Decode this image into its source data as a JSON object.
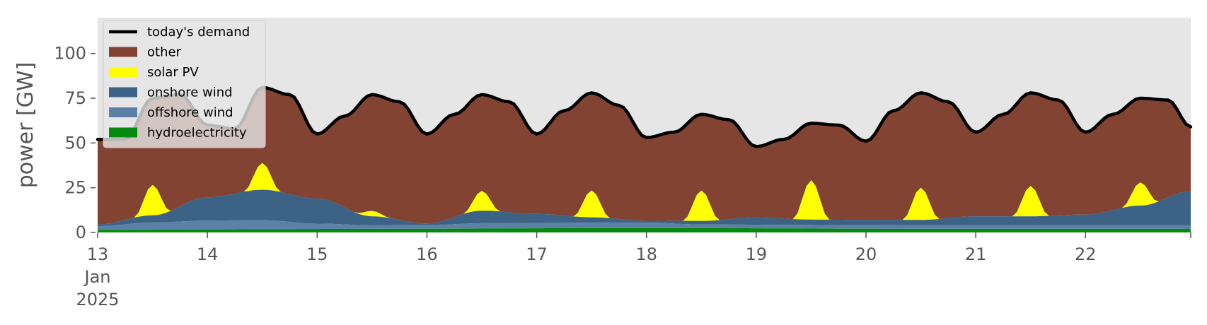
{
  "chart_data": {
    "type": "area",
    "title": "",
    "xlabel": "",
    "ylabel": "power [GW]",
    "ylim": [
      0,
      120
    ],
    "yticks": [
      0,
      25,
      50,
      75,
      100
    ],
    "xlim": [
      "2025-01-13 00:00",
      "2025-01-22 23:00"
    ],
    "x_tick_labels": [
      "13",
      "14",
      "15",
      "16",
      "17",
      "18",
      "19",
      "20",
      "21",
      "22"
    ],
    "x_tick_sublabels": [
      "Jan",
      "2025"
    ],
    "x_resolution": "hourly",
    "grid": false,
    "background": "#e6e6e6",
    "legend_position": "top-left",
    "stack_order_bottom_to_top": [
      "hydroelectricity",
      "offshore wind",
      "onshore wind",
      "solar PV",
      "other"
    ],
    "colors": {
      "today's demand": "#000000",
      "other": "#824333",
      "solar PV": "#ffff00",
      "onshore wind": "#3c6285",
      "offshore wind": "#5c81a6",
      "hydroelectricity": "#058a0e"
    },
    "series": [
      {
        "name": "today's demand",
        "kind": "line",
        "values": [
          {
            "t": "2025-01-13 00:00",
            "v": 52
          },
          {
            "t": "2025-01-13 06:00",
            "v": 52
          },
          {
            "t": "2025-01-13 12:00",
            "v": 75
          },
          {
            "t": "2025-01-13 18:00",
            "v": 77
          },
          {
            "t": "2025-01-14 00:00",
            "v": 60
          },
          {
            "t": "2025-01-14 06:00",
            "v": 58
          },
          {
            "t": "2025-01-14 12:00",
            "v": 81
          },
          {
            "t": "2025-01-14 18:00",
            "v": 77
          },
          {
            "t": "2025-01-15 00:00",
            "v": 55
          },
          {
            "t": "2025-01-15 06:00",
            "v": 65
          },
          {
            "t": "2025-01-15 12:00",
            "v": 77
          },
          {
            "t": "2025-01-15 18:00",
            "v": 73
          },
          {
            "t": "2025-01-16 00:00",
            "v": 55
          },
          {
            "t": "2025-01-16 06:00",
            "v": 66
          },
          {
            "t": "2025-01-16 12:00",
            "v": 77
          },
          {
            "t": "2025-01-16 18:00",
            "v": 73
          },
          {
            "t": "2025-01-17 00:00",
            "v": 55
          },
          {
            "t": "2025-01-17 06:00",
            "v": 68
          },
          {
            "t": "2025-01-17 12:00",
            "v": 78
          },
          {
            "t": "2025-01-17 18:00",
            "v": 71
          },
          {
            "t": "2025-01-18 00:00",
            "v": 53
          },
          {
            "t": "2025-01-18 06:00",
            "v": 56
          },
          {
            "t": "2025-01-18 12:00",
            "v": 66
          },
          {
            "t": "2025-01-18 18:00",
            "v": 63
          },
          {
            "t": "2025-01-19 00:00",
            "v": 48
          },
          {
            "t": "2025-01-19 06:00",
            "v": 52
          },
          {
            "t": "2025-01-19 12:00",
            "v": 61
          },
          {
            "t": "2025-01-19 18:00",
            "v": 60
          },
          {
            "t": "2025-01-20 00:00",
            "v": 51
          },
          {
            "t": "2025-01-20 06:00",
            "v": 68
          },
          {
            "t": "2025-01-20 12:00",
            "v": 78
          },
          {
            "t": "2025-01-20 18:00",
            "v": 73
          },
          {
            "t": "2025-01-21 00:00",
            "v": 56
          },
          {
            "t": "2025-01-21 06:00",
            "v": 66
          },
          {
            "t": "2025-01-21 12:00",
            "v": 78
          },
          {
            "t": "2025-01-21 18:00",
            "v": 74
          },
          {
            "t": "2025-01-22 00:00",
            "v": 56
          },
          {
            "t": "2025-01-22 06:00",
            "v": 66
          },
          {
            "t": "2025-01-22 12:00",
            "v": 75
          },
          {
            "t": "2025-01-22 18:00",
            "v": 74
          },
          {
            "t": "2025-01-22 23:00",
            "v": 59
          }
        ]
      },
      {
        "name": "other",
        "kind": "area",
        "values": "today's demand minus the stacked renewables below"
      },
      {
        "name": "solar PV",
        "kind": "area",
        "daily_peaks_GW": [
          {
            "t": "2025-01-13 12:00",
            "v": 17
          },
          {
            "t": "2025-01-14 12:00",
            "v": 15
          },
          {
            "t": "2025-01-15 12:00",
            "v": 3
          },
          {
            "t": "2025-01-16 12:00",
            "v": 11
          },
          {
            "t": "2025-01-17 12:00",
            "v": 15
          },
          {
            "t": "2025-01-18 12:00",
            "v": 17
          },
          {
            "t": "2025-01-19 12:00",
            "v": 22
          },
          {
            "t": "2025-01-20 12:00",
            "v": 18
          },
          {
            "t": "2025-01-21 12:00",
            "v": 17
          },
          {
            "t": "2025-01-22 12:00",
            "v": 13
          }
        ],
        "daylight_hours": [
          "08:00",
          "16:00"
        ]
      },
      {
        "name": "onshore wind",
        "kind": "area",
        "values": [
          {
            "t": "2025-01-13 00:00",
            "v": 1
          },
          {
            "t": "2025-01-13 12:00",
            "v": 4
          },
          {
            "t": "2025-01-14 00:00",
            "v": 13
          },
          {
            "t": "2025-01-14 12:00",
            "v": 17
          },
          {
            "t": "2025-01-15 00:00",
            "v": 14
          },
          {
            "t": "2025-01-15 12:00",
            "v": 5
          },
          {
            "t": "2025-01-16 00:00",
            "v": 1
          },
          {
            "t": "2025-01-16 12:00",
            "v": 7
          },
          {
            "t": "2025-01-17 00:00",
            "v": 5
          },
          {
            "t": "2025-01-17 12:00",
            "v": 3
          },
          {
            "t": "2025-01-18 00:00",
            "v": 1
          },
          {
            "t": "2025-01-18 12:00",
            "v": 2
          },
          {
            "t": "2025-01-19 00:00",
            "v": 4
          },
          {
            "t": "2025-01-19 12:00",
            "v": 3
          },
          {
            "t": "2025-01-20 00:00",
            "v": 3
          },
          {
            "t": "2025-01-20 12:00",
            "v": 3
          },
          {
            "t": "2025-01-21 00:00",
            "v": 5
          },
          {
            "t": "2025-01-21 12:00",
            "v": 5
          },
          {
            "t": "2025-01-22 00:00",
            "v": 6
          },
          {
            "t": "2025-01-22 12:00",
            "v": 11
          },
          {
            "t": "2025-01-22 23:00",
            "v": 19
          }
        ]
      },
      {
        "name": "offshore wind",
        "kind": "area",
        "values": [
          {
            "t": "2025-01-13 00:00",
            "v": 2
          },
          {
            "t": "2025-01-13 12:00",
            "v": 4
          },
          {
            "t": "2025-01-14 00:00",
            "v": 5
          },
          {
            "t": "2025-01-14 12:00",
            "v": 5
          },
          {
            "t": "2025-01-15 00:00",
            "v": 3
          },
          {
            "t": "2025-01-15 12:00",
            "v": 2
          },
          {
            "t": "2025-01-16 00:00",
            "v": 2
          },
          {
            "t": "2025-01-16 12:00",
            "v": 3
          },
          {
            "t": "2025-01-17 00:00",
            "v": 3
          },
          {
            "t": "2025-01-17 12:00",
            "v": 3
          },
          {
            "t": "2025-01-18 00:00",
            "v": 3
          },
          {
            "t": "2025-01-18 12:00",
            "v": 2
          },
          {
            "t": "2025-01-19 00:00",
            "v": 2
          },
          {
            "t": "2025-01-19 12:00",
            "v": 2
          },
          {
            "t": "2025-01-20 00:00",
            "v": 2
          },
          {
            "t": "2025-01-20 12:00",
            "v": 2
          },
          {
            "t": "2025-01-21 00:00",
            "v": 2
          },
          {
            "t": "2025-01-21 12:00",
            "v": 2
          },
          {
            "t": "2025-01-22 00:00",
            "v": 2
          },
          {
            "t": "2025-01-22 12:00",
            "v": 2
          },
          {
            "t": "2025-01-22 23:00",
            "v": 2
          }
        ]
      },
      {
        "name": "hydroelectricity",
        "kind": "area",
        "values": [
          {
            "t": "2025-01-13 00:00",
            "v": 1.5
          },
          {
            "t": "2025-01-15 12:00",
            "v": 2
          },
          {
            "t": "2025-01-18 00:00",
            "v": 2.5
          },
          {
            "t": "2025-01-20 12:00",
            "v": 2
          },
          {
            "t": "2025-01-22 23:00",
            "v": 2
          }
        ]
      }
    ]
  },
  "legend": {
    "items": [
      {
        "label": "today's demand",
        "kind": "line",
        "color": "#000000"
      },
      {
        "label": "other",
        "kind": "patch",
        "color": "#824333"
      },
      {
        "label": "solar PV",
        "kind": "patch",
        "color": "#ffff00"
      },
      {
        "label": "onshore wind",
        "kind": "patch",
        "color": "#3c6285"
      },
      {
        "label": "offshore wind",
        "kind": "patch",
        "color": "#5c81a6"
      },
      {
        "label": "hydroelectricity",
        "kind": "patch",
        "color": "#058a0e"
      }
    ]
  }
}
